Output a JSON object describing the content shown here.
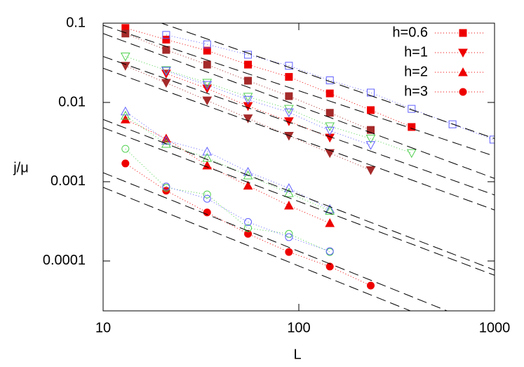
{
  "chart_data": {
    "type": "line",
    "xlabel": "L",
    "ylabel": "j/μ",
    "xscale": "log",
    "yscale": "log",
    "xlim": [
      10,
      1000
    ],
    "ylim": [
      2.35e-05,
      0.1
    ],
    "xticks": [
      10,
      100,
      1000
    ],
    "yticks": [
      0.1,
      0.01,
      0.001,
      0.0001
    ],
    "legend": "top-right",
    "series": [
      {
        "name": "h=0.6",
        "color": "#ee0000",
        "marker": "square",
        "filled": true,
        "line": "dotted",
        "x": [
          13,
          21,
          34,
          55,
          89,
          144,
          233,
          377
        ],
        "values": [
          0.087,
          0.062,
          0.045,
          0.03,
          0.021,
          0.013,
          0.008,
          0.0049
        ]
      },
      {
        "name": "h=1",
        "color": "#ee0000",
        "marker": "triangle-down",
        "filled": true,
        "line": "dotted",
        "x": [
          21,
          34,
          55,
          89,
          144
        ],
        "values": [
          0.0231,
          0.015,
          0.009,
          0.0058,
          0.0036
        ]
      },
      {
        "name": "h=2",
        "color": "#ee0000",
        "marker": "triangle-up",
        "filled": true,
        "line": "dotted",
        "x": [
          13,
          21,
          34,
          55,
          89,
          144
        ],
        "values": [
          0.0061,
          0.0035,
          0.0016,
          0.00089,
          0.0005,
          0.0003
        ]
      },
      {
        "name": "h=3",
        "color": "#ee0000",
        "marker": "circle",
        "filled": true,
        "line": "dotted",
        "x": [
          13,
          21,
          34,
          55,
          89,
          144,
          233
        ],
        "values": [
          0.0017,
          0.00077,
          0.00041,
          0.00022,
          0.00013,
          8.5e-05,
          4.9e-05
        ]
      },
      {
        "color": "#a52a2a",
        "marker": "square",
        "filled": true,
        "line": "dotted",
        "x": [
          13,
          21,
          34,
          55,
          89,
          144,
          233
        ],
        "values": [
          0.074,
          0.046,
          0.03,
          0.0188,
          0.012,
          0.0074,
          0.0045
        ]
      },
      {
        "color": "#6060ff",
        "marker": "square",
        "filled": false,
        "line": "dotted",
        "x": [
          21,
          34,
          55,
          89,
          144,
          233,
          377,
          610,
          987
        ],
        "values": [
          0.071,
          0.054,
          0.04,
          0.029,
          0.019,
          0.0133,
          0.0083,
          0.0053,
          0.0034
        ]
      },
      {
        "color": "#a52a2a",
        "marker": "triangle-down",
        "filled": true,
        "line": "dotted",
        "x": [
          13,
          21,
          34,
          55,
          89,
          144,
          233
        ],
        "values": [
          0.029,
          0.0177,
          0.0106,
          0.0063,
          0.0038,
          0.0023,
          0.0014
        ]
      },
      {
        "color": "#50d050",
        "marker": "triangle-down",
        "filled": false,
        "line": "dotted",
        "x": [
          13,
          21,
          34,
          55,
          89,
          144,
          233,
          377
        ],
        "values": [
          0.038,
          0.0255,
          0.0177,
          0.0118,
          0.0083,
          0.005,
          0.0035,
          0.0023
        ]
      },
      {
        "color": "#6060ff",
        "marker": "triangle-down",
        "filled": false,
        "line": "dotted",
        "x": [
          21,
          34,
          55,
          89,
          144,
          233
        ],
        "values": [
          0.025,
          0.0166,
          0.0108,
          0.0075,
          0.0044,
          0.0029
        ]
      },
      {
        "color": "#6060ff",
        "marker": "triangle-up",
        "filled": false,
        "line": "dotted",
        "x": [
          13,
          21,
          34,
          55,
          89,
          144
        ],
        "values": [
          0.0077,
          0.0033,
          0.0024,
          0.00133,
          0.00083,
          0.00045
        ]
      },
      {
        "color": "#50d050",
        "marker": "triangle-up",
        "filled": false,
        "line": "dotted",
        "x": [
          13,
          21,
          34,
          55,
          89,
          144
        ],
        "values": [
          0.0068,
          0.003,
          0.002,
          0.0012,
          0.00072,
          0.00043
        ]
      },
      {
        "color": "#50d050",
        "marker": "circle",
        "filled": false,
        "line": "dotted",
        "x": [
          13,
          21,
          34,
          55,
          89,
          144
        ],
        "values": [
          0.0026,
          0.00084,
          0.00069,
          0.00026,
          0.00022,
          0.00013
        ]
      },
      {
        "color": "#6060ff",
        "marker": "circle",
        "filled": false,
        "line": "dotted",
        "x": [
          21,
          34,
          55,
          89,
          144
        ],
        "values": [
          0.00087,
          0.00061,
          0.00031,
          0.0002,
          0.000133
        ]
      },
      {
        "color": "#000000",
        "line": "dashed",
        "x": [
          10,
          1000
        ],
        "values": [
          0.18,
          0.0035
        ]
      },
      {
        "color": "#000000",
        "line": "dashed",
        "x": [
          10,
          1000
        ],
        "values": [
          0.094,
          0.0021
        ]
      },
      {
        "color": "#000000",
        "line": "dashed",
        "x": [
          10,
          1000
        ],
        "values": [
          0.074,
          0.0011
        ]
      },
      {
        "color": "#000000",
        "line": "dashed",
        "x": [
          10,
          1000
        ],
        "values": [
          0.038,
          0.00068
        ]
      },
      {
        "color": "#000000",
        "line": "dashed",
        "x": [
          10,
          1000
        ],
        "values": [
          0.027,
          0.00044
        ]
      },
      {
        "color": "#000000",
        "line": "dashed",
        "x": [
          10,
          1000
        ],
        "values": [
          0.0061,
          7.7e-05
        ]
      },
      {
        "color": "#000000",
        "line": "dashed",
        "x": [
          10,
          1000
        ],
        "values": [
          0.0048,
          6.6e-05
        ]
      },
      {
        "color": "#000000",
        "line": "dashed",
        "x": [
          10,
          1000
        ],
        "values": [
          0.0013,
          1.35e-05
        ]
      },
      {
        "color": "#000000",
        "line": "dashed",
        "x": [
          10,
          1000
        ],
        "values": [
          0.00085,
          8.8e-06
        ]
      }
    ]
  }
}
